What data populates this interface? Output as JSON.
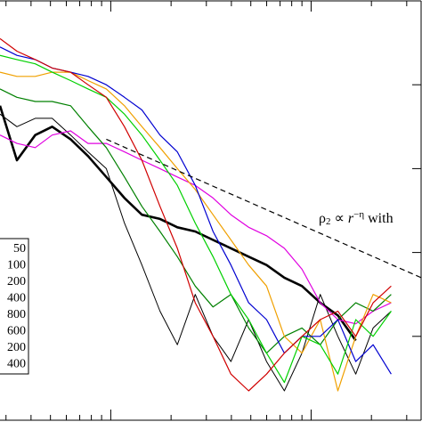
{
  "chart_data": {
    "type": "line",
    "xscale": "log",
    "xlim": [
      0.28,
      35.4
    ],
    "xticks": [
      1,
      10
    ],
    "ylim": [
      0,
      100
    ],
    "yticks": [
      0,
      20,
      40,
      60,
      80,
      100
    ],
    "x": [
      0.28,
      0.34,
      0.42,
      0.51,
      0.63,
      0.77,
      0.95,
      1.17,
      1.43,
      1.76,
      2.15,
      2.64,
      3.24,
      3.98,
      4.88,
      5.99,
      7.35,
      9.0,
      11.1,
      13.6,
      16.7,
      20.4,
      25.1
    ],
    "series": [
      {
        "name": "50",
        "color": "#000000",
        "width": 2.6,
        "values": [
          75,
          62,
          68,
          70,
          67,
          63,
          58,
          53,
          49,
          48,
          46,
          45,
          43,
          41,
          39,
          37,
          34,
          32,
          28,
          25,
          19,
          null,
          null
        ]
      },
      {
        "name": "100",
        "color": "#000000",
        "width": 1,
        "values": [
          73,
          70,
          72,
          72,
          68,
          64,
          60,
          47,
          37,
          26,
          18,
          30,
          20,
          14,
          24,
          14,
          7,
          16,
          30,
          20,
          11,
          22,
          26
        ]
      },
      {
        "name": "200",
        "color": "#e000e0",
        "width": 1.2,
        "values": [
          68,
          66,
          65,
          68,
          69,
          66,
          66,
          64,
          62,
          60,
          58,
          56,
          53,
          49,
          46,
          44,
          41,
          36,
          28,
          24,
          23,
          26,
          28
        ]
      },
      {
        "name": "400",
        "color": "#008000",
        "width": 1.2,
        "values": [
          79,
          77,
          76,
          76,
          75,
          70,
          65,
          58,
          51,
          45,
          39,
          32,
          27,
          30,
          22,
          16,
          20,
          22,
          18,
          24,
          28,
          26,
          30
        ]
      },
      {
        "name": "800",
        "color": "#f0a000",
        "width": 1.2,
        "values": [
          83,
          82,
          82,
          83,
          83,
          81,
          79,
          75,
          70,
          65,
          60,
          55,
          49,
          43,
          37,
          32,
          20,
          16,
          24,
          7,
          20,
          30,
          28
        ]
      },
      {
        "name": "600",
        "color": "#0000d0",
        "width": 1.2,
        "values": [
          89,
          87,
          86,
          84,
          83,
          82,
          80,
          77,
          74,
          68,
          64,
          56,
          45,
          37,
          28,
          24,
          16,
          20,
          20,
          24,
          14,
          18,
          11
        ]
      },
      {
        "name": "200",
        "color": "#00d000",
        "width": 1.2,
        "values": [
          87,
          86,
          85,
          83,
          81,
          79,
          77,
          73,
          68,
          62,
          56,
          47,
          39,
          30,
          24,
          16,
          9,
          20,
          18,
          11,
          24,
          20,
          26
        ]
      },
      {
        "name": "400",
        "color": "#d00000",
        "width": 1.2,
        "values": [
          91,
          88,
          86,
          84,
          83,
          80,
          77,
          70,
          62,
          51,
          41,
          28,
          20,
          11,
          7,
          11,
          16,
          20,
          24,
          26,
          20,
          28,
          32
        ]
      }
    ],
    "fit": {
      "x": [
        0.95,
        35.4
      ],
      "values": [
        67,
        34
      ],
      "color": "#000000"
    },
    "annotation": {
      "base": "ρ",
      "sub": "2",
      "mid": " ∝ ",
      "var": "r",
      "sup": "−η",
      "tail": " with"
    }
  }
}
